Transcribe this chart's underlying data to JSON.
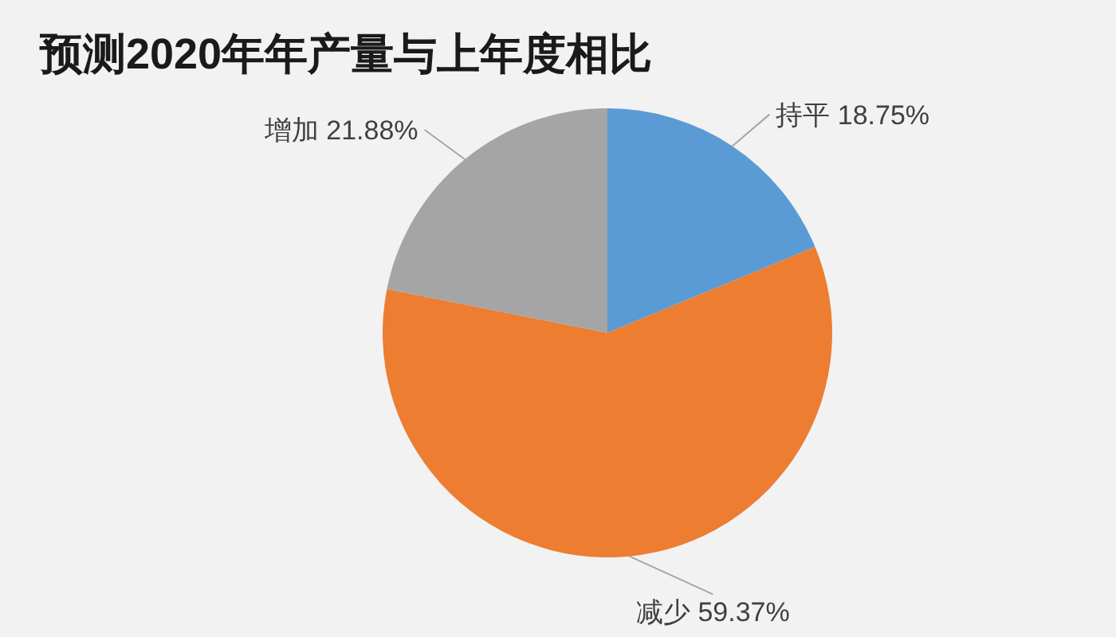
{
  "chart_data": {
    "type": "pie",
    "title": "预测2020年年产量与上年度相比",
    "categories": [
      "持平",
      "减少",
      "增加"
    ],
    "values": [
      18.75,
      59.37,
      21.88
    ],
    "value_labels": [
      "18.75%",
      "59.37%",
      "21.88%"
    ],
    "colors": [
      "#5b9bd5",
      "#ed7d31",
      "#a5a5a5"
    ]
  }
}
